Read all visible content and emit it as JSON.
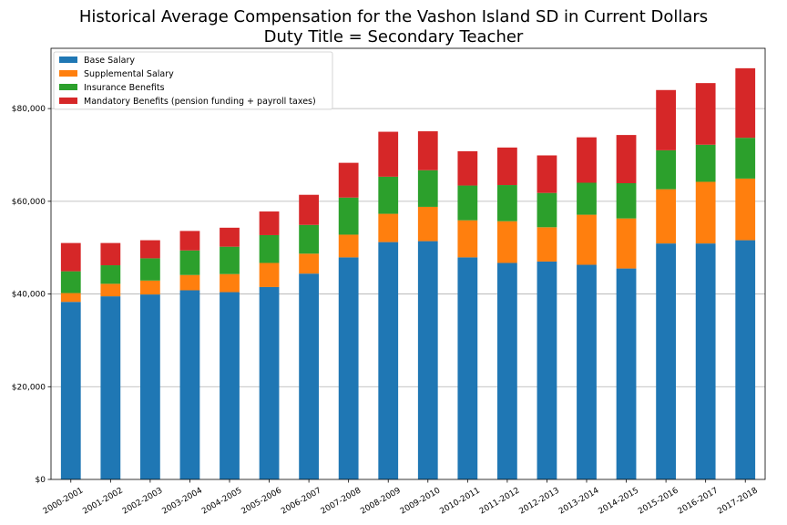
{
  "chart_data": {
    "type": "bar",
    "stacked": true,
    "title": [
      "Historical Average Compensation for the Vashon Island SD in Current Dollars",
      "Duty Title = Secondary Teacher"
    ],
    "xlabel": "",
    "ylabel": "",
    "ylim": [
      0,
      93000
    ],
    "yticks": [
      0,
      20000,
      40000,
      60000,
      80000
    ],
    "ytick_labels": [
      "$0",
      "$20,000",
      "$40,000",
      "$60,000",
      "$80,000"
    ],
    "grid": "horizontal",
    "legend_position": "top-left",
    "categories": [
      "2000-2001",
      "2001-2002",
      "2002-2003",
      "2003-2004",
      "2004-2005",
      "2005-2006",
      "2006-2007",
      "2007-2008",
      "2008-2009",
      "2009-2010",
      "2010-2011",
      "2011-2012",
      "2012-2013",
      "2013-2014",
      "2014-2015",
      "2015-2016",
      "2016-2017",
      "2017-2018"
    ],
    "series": [
      {
        "name": "Base Salary",
        "color": "#1f77b4",
        "values": [
          38300,
          39500,
          39900,
          40800,
          40400,
          41500,
          44400,
          47900,
          51200,
          51400,
          47900,
          46700,
          47000,
          46300,
          45500,
          50900,
          50900,
          51600
        ]
      },
      {
        "name": "Supplemental Salary",
        "color": "#ff7f0e",
        "values": [
          1900,
          2700,
          3000,
          3300,
          3900,
          5200,
          4300,
          4900,
          6100,
          7400,
          8000,
          9000,
          7400,
          10800,
          10800,
          11700,
          13300,
          13300
        ]
      },
      {
        "name": "Insurance Benefits",
        "color": "#2ca02c",
        "values": [
          4700,
          4000,
          4800,
          5300,
          5900,
          6000,
          6200,
          8000,
          8000,
          7900,
          7500,
          7800,
          7400,
          6900,
          7600,
          8400,
          8000,
          8800
        ]
      },
      {
        "name": "Mandatory Benefits (pension funding + payroll taxes)",
        "color": "#d62728",
        "values": [
          6100,
          4800,
          3900,
          4200,
          4100,
          5100,
          6500,
          7500,
          9700,
          8400,
          7400,
          8100,
          8100,
          9800,
          10400,
          13000,
          13300,
          15000
        ]
      }
    ]
  }
}
